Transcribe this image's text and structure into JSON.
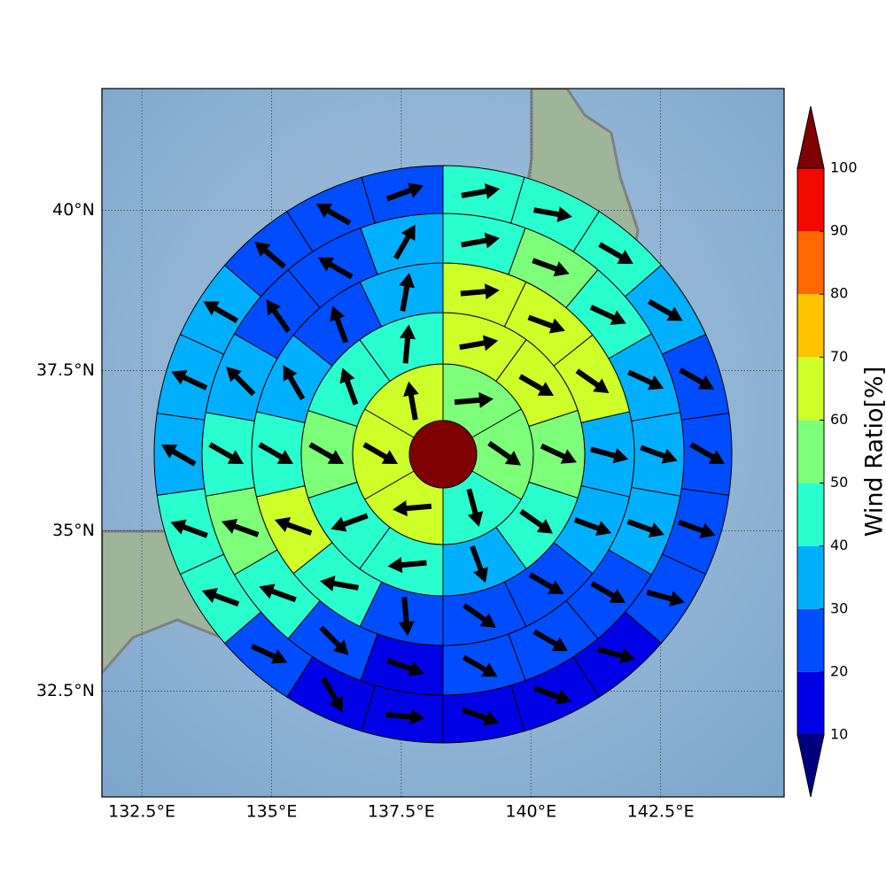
{
  "chart_data": {
    "type": "polar-sector-map",
    "xlim": [
      131.73,
      144.88
    ],
    "ylim": [
      30.85,
      41.9
    ],
    "xticks": [
      {
        "value": 132.5,
        "label": "132.5°E"
      },
      {
        "value": 135,
        "label": "135°E"
      },
      {
        "value": 137.5,
        "label": "137.5°E"
      },
      {
        "value": 140,
        "label": "140°E"
      },
      {
        "value": 142.5,
        "label": "142.5°E"
      }
    ],
    "yticks": [
      {
        "value": 32.5,
        "label": "32.5°N"
      },
      {
        "value": 35,
        "label": "35°N"
      },
      {
        "value": 37.5,
        "label": "37.5°N"
      },
      {
        "value": 40,
        "label": "40°N"
      }
    ],
    "grid": true,
    "rings": [
      {
        "values": [
          55,
          55,
          45,
          65,
          65,
          65
        ],
        "directions": [
          85,
          125,
          165,
          265,
          120,
          350
        ]
      },
      {
        "values": [
          65,
          65,
          55,
          45,
          35,
          45,
          45,
          55,
          45,
          45
        ],
        "directions": [
          80,
          120,
          115,
          125,
          160,
          265,
          250,
          120,
          340,
          5
        ]
      },
      {
        "values": [
          65,
          65,
          65,
          35,
          35,
          25,
          25,
          25,
          45,
          65,
          45,
          35,
          25,
          35
        ],
        "directions": [
          85,
          110,
          125,
          105,
          110,
          120,
          125,
          175,
          280,
          290,
          120,
          330,
          340,
          10
        ]
      },
      {
        "values": [
          45,
          55,
          45,
          35,
          35,
          35,
          25,
          25,
          25,
          15,
          25,
          45,
          55,
          45,
          35,
          25,
          25,
          35
        ],
        "directions": [
          80,
          110,
          115,
          115,
          110,
          110,
          120,
          120,
          120,
          110,
          135,
          290,
          290,
          120,
          315,
          325,
          300,
          30
        ]
      },
      {
        "values": [
          45,
          45,
          45,
          35,
          25,
          25,
          25,
          25,
          15,
          15,
          15,
          15,
          15,
          25,
          45,
          45,
          35,
          35,
          35,
          25,
          25,
          25
        ],
        "directions": [
          80,
          100,
          120,
          120,
          120,
          120,
          110,
          105,
          105,
          110,
          110,
          95,
          150,
          115,
          290,
          290,
          300,
          295,
          300,
          310,
          300,
          70
        ]
      }
    ],
    "colorbar": {
      "label": "Wind Ratio[%]",
      "ticks": [
        10,
        20,
        30,
        40,
        50,
        60,
        70,
        80,
        90,
        100
      ],
      "colors": [
        "#00007f",
        "#0000e6",
        "#004cff",
        "#00b0ff",
        "#29ffce",
        "#7dff7a",
        "#ceff29",
        "#ffc400",
        "#ff6800",
        "#f10800",
        "#7f0000"
      ]
    }
  }
}
